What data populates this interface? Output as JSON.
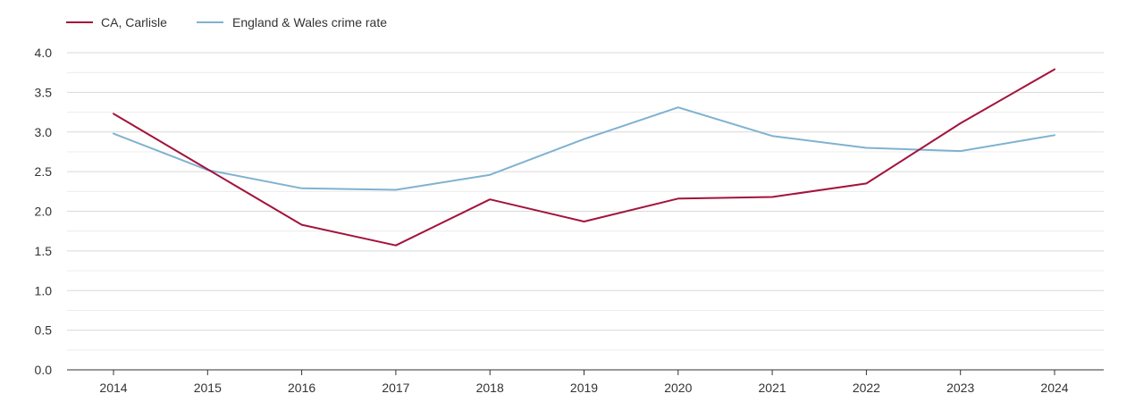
{
  "chart_data": {
    "type": "line",
    "title": "",
    "xlabel": "",
    "ylabel": "",
    "x": [
      "2014",
      "2015",
      "2016",
      "2017",
      "2018",
      "2019",
      "2020",
      "2021",
      "2022",
      "2023",
      "2024"
    ],
    "ylim": [
      0,
      4
    ],
    "yticks": [
      "0.0",
      "0.5",
      "1.0",
      "1.5",
      "2.0",
      "2.5",
      "3.0",
      "3.5",
      "4.0"
    ],
    "grid": true,
    "legend_position": "top-left",
    "series": [
      {
        "name": "CA, Carlisle",
        "color": "#a3133b",
        "values": [
          3.23,
          2.53,
          1.83,
          1.57,
          2.15,
          1.87,
          2.16,
          2.18,
          2.35,
          3.11,
          3.79
        ]
      },
      {
        "name": "England & Wales crime rate",
        "color": "#7fb2d1",
        "values": [
          2.98,
          2.52,
          2.29,
          2.27,
          2.46,
          2.91,
          3.31,
          2.95,
          2.8,
          2.76,
          2.96
        ]
      }
    ]
  }
}
